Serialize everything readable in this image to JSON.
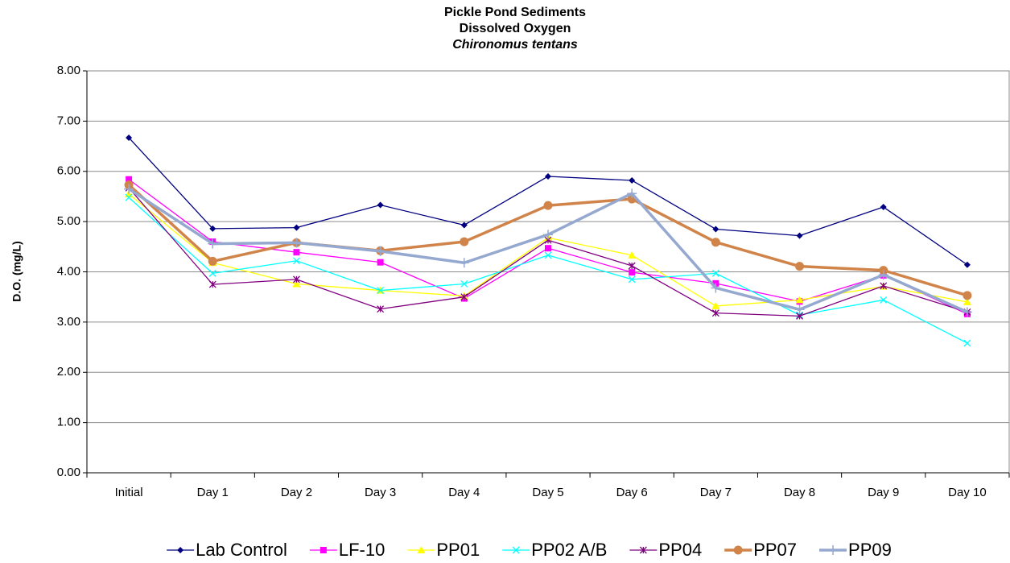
{
  "chart_data": {
    "type": "line",
    "title": [
      "Pickle Pond Sediments",
      "Dissolved Oxygen",
      "Chironomus tentans"
    ],
    "ylabel": "D.O. (mg/L)",
    "categories": [
      "Initial",
      "Day 1",
      "Day 2",
      "Day 3",
      "Day 4",
      "Day 5",
      "Day 6",
      "Day 7",
      "Day 8",
      "Day 9",
      "Day 10"
    ],
    "ylim": [
      0,
      8
    ],
    "yticks": [
      {
        "value": 0,
        "label": "0.00"
      },
      {
        "value": 1,
        "label": "1.00"
      },
      {
        "value": 2,
        "label": "2.00"
      },
      {
        "value": 3,
        "label": "3.00"
      },
      {
        "value": 4,
        "label": "4.00"
      },
      {
        "value": 5,
        "label": "5.00"
      },
      {
        "value": 6,
        "label": "6.00"
      },
      {
        "value": 7,
        "label": "7.00"
      },
      {
        "value": 8,
        "label": "8.00"
      }
    ],
    "grid": true,
    "legend": "bottom",
    "series": [
      {
        "name": "Lab Control",
        "color": "#000080",
        "marker": "diamond",
        "values": [
          6.67,
          4.86,
          4.88,
          5.33,
          4.93,
          5.9,
          5.82,
          4.85,
          4.72,
          5.29,
          4.14
        ]
      },
      {
        "name": "LF-10",
        "color": "#ff00ff",
        "marker": "square",
        "values": [
          5.84,
          4.6,
          4.39,
          4.19,
          3.47,
          4.47,
          3.99,
          3.77,
          3.41,
          3.93,
          3.16
        ]
      },
      {
        "name": "PP01",
        "color": "#ffff00",
        "marker": "triangle",
        "values": [
          5.55,
          4.18,
          3.76,
          3.63,
          3.52,
          4.68,
          4.33,
          3.32,
          3.44,
          3.71,
          3.4
        ]
      },
      {
        "name": "PP02 A/B",
        "color": "#00ffff",
        "marker": "x",
        "values": [
          5.48,
          3.97,
          4.22,
          3.63,
          3.76,
          4.33,
          3.85,
          3.97,
          3.14,
          3.44,
          2.58
        ]
      },
      {
        "name": "PP04",
        "color": "#800080",
        "marker": "star",
        "values": [
          5.67,
          3.75,
          3.85,
          3.26,
          3.5,
          4.63,
          4.12,
          3.18,
          3.12,
          3.72,
          3.2
        ]
      },
      {
        "name": "PP07",
        "color": "#d0844a",
        "marker": "circle",
        "values": [
          5.73,
          4.21,
          4.58,
          4.42,
          4.6,
          5.32,
          5.45,
          4.59,
          4.11,
          4.03,
          3.53
        ]
      },
      {
        "name": "PP09",
        "color": "#95a8cf",
        "marker": "plus",
        "values": [
          5.65,
          4.56,
          4.58,
          4.41,
          4.18,
          4.74,
          5.56,
          3.68,
          3.25,
          3.94,
          3.2
        ]
      }
    ]
  }
}
